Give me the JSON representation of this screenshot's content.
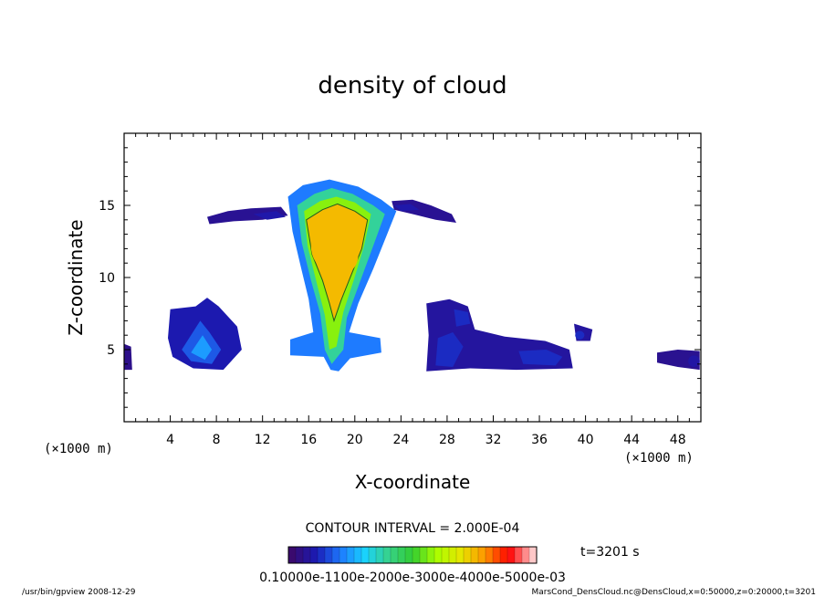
{
  "chart_data": {
    "type": "heatmap",
    "title": "density of cloud",
    "xlabel": "X-coordinate",
    "ylabel": "Z-coordinate",
    "xunit_left": "(×1000 m)",
    "xunit_right": "(×1000 m)",
    "xlim": [
      0,
      50
    ],
    "ylim": [
      0,
      20
    ],
    "xticks": [
      4,
      8,
      12,
      16,
      20,
      24,
      28,
      32,
      36,
      40,
      44,
      48
    ],
    "yticks": [
      5,
      10,
      15
    ],
    "contour_interval_text": "CONTOUR INTERVAL = 2.000E-04",
    "time_text": "t=3201 s",
    "colorbar_labels_text": "0.10000e-1100e-2000e-3000e-4000e-5000e-03",
    "colorbar_range": [
      0,
      0.0006
    ],
    "colormap": [
      "#3a0a6e",
      "#1a1ab4",
      "#1e78ff",
      "#19d2ff",
      "#37d28c",
      "#32cd32",
      "#aaff00",
      "#e6e600",
      "#ff9600",
      "#ff0000",
      "#ffc8c8"
    ],
    "regions": [
      {
        "name": "tall cloud",
        "x_range": [
          14,
          24
        ],
        "z_range": [
          3.5,
          16.5
        ],
        "peak": 0.00045
      },
      {
        "name": "left upper wisp",
        "x_range": [
          7,
          14
        ],
        "z_range": [
          14,
          15
        ],
        "peak": 8e-05
      },
      {
        "name": "right upper wisp",
        "x_range": [
          23,
          29
        ],
        "z_range": [
          14,
          15.5
        ],
        "peak": 8e-05
      },
      {
        "name": "small cloud",
        "x_range": [
          4,
          10
        ],
        "z_range": [
          3.5,
          8.5
        ],
        "peak": 0.00018
      },
      {
        "name": "right cloud band",
        "x_range": [
          26,
          39
        ],
        "z_range": [
          3.5,
          8.5
        ],
        "peak": 0.00012
      },
      {
        "name": "far right patch",
        "x_range": [
          46,
          50
        ],
        "z_range": [
          3.5,
          5
        ],
        "peak": 7e-05
      }
    ]
  },
  "footer": {
    "left": "/usr/bin/gpview  2008-12-29",
    "right": "MarsCond_DensCloud.nc@DensCloud,x=0:50000,z=0:20000,t=3201"
  }
}
